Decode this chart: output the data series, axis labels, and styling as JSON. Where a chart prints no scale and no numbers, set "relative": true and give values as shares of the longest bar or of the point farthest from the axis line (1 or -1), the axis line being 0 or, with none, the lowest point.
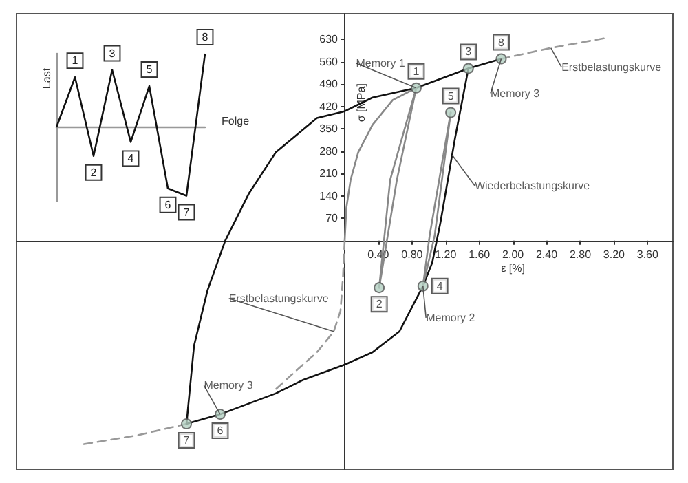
{
  "chart_data": [
    {
      "type": "line",
      "xlabel": "ε [%]",
      "ylabel": "σ [MPa]",
      "xlim": [
        -3.9,
        3.9
      ],
      "ylim": [
        -715,
        710
      ],
      "xticks": [
        {
          "value": 0.4,
          "label": "0.40"
        },
        {
          "value": 0.8,
          "label": "0.80"
        },
        {
          "value": 1.2,
          "label": "1.20"
        },
        {
          "value": 1.6,
          "label": "1.60"
        },
        {
          "value": 2.0,
          "label": "2.00"
        },
        {
          "value": 2.4,
          "label": "2.40"
        },
        {
          "value": 2.8,
          "label": "2.80"
        },
        {
          "value": 3.2,
          "label": "3.20"
        },
        {
          "value": 3.6,
          "label": "3.60"
        }
      ],
      "yticks": [
        70,
        140,
        210,
        280,
        350,
        420,
        490,
        560,
        630
      ],
      "grid": false,
      "marker": "none",
      "series": [
        {
          "color": "#888888",
          "x": [
            0,
            0.02,
            0.07,
            0.16,
            0.33,
            0.57,
            0.85
          ],
          "values": [
            0,
            103,
            190,
            276,
            362,
            440,
            478
          ]
        },
        {
          "color": "#999999",
          "line_style": "dashed",
          "x": [
            0,
            -0.02,
            -0.05,
            -0.13,
            -0.33,
            -0.57,
            -0.82,
            null,
            -1.88,
            -2.45,
            -3.13,
            null,
            1.86,
            2.45,
            3.1
          ],
          "values": [
            0,
            -112,
            -220,
            -284,
            -349,
            -405,
            -465,
            null,
            -573,
            -608,
            -638,
            null,
            569,
            603,
            634
          ]
        },
        {
          "color": "#111111",
          "x": [
            -1.88,
            -1.79,
            -1.63,
            -1.42,
            -1.14,
            -0.82,
            -0.33,
            0,
            0.33,
            0.85,
            1.47,
            1.86
          ],
          "values": [
            -573,
            -328,
            -155,
            0,
            147,
            276,
            384,
            405,
            448,
            478,
            539,
            569
          ]
        },
        {
          "color": "#111111",
          "x": [
            1.47,
            1.31,
            1.14,
            1.04,
            0.93,
            0.65,
            0.33,
            0,
            -0.49,
            -0.82,
            -1.48,
            -1.88
          ],
          "values": [
            539,
            319,
            60,
            -69,
            -142,
            -284,
            -349,
            -388,
            -435,
            -478,
            -543,
            -573
          ]
        },
        {
          "color": "#888888",
          "x": [
            0.85,
            0.54,
            0.41
          ],
          "values": [
            478,
            190,
            -147
          ]
        },
        {
          "color": "#888888",
          "x": [
            0.41,
            0.62,
            0.85
          ],
          "values": [
            -147,
            190,
            478
          ]
        },
        {
          "color": "#888888",
          "x": [
            1.26,
            1.01,
            0.93
          ],
          "values": [
            401,
            17,
            -142
          ]
        },
        {
          "color": "#888888",
          "x": [
            0.93,
            1.07,
            1.26
          ],
          "values": [
            -142,
            17,
            401
          ]
        },
        {
          "type": "scatter",
          "marker": "circle",
          "color": "#b3cfc2",
          "x": [
            0.85,
            0.41,
            1.47,
            0.93,
            1.26,
            -1.48,
            -1.88,
            1.86
          ],
          "values": [
            478,
            -147,
            539,
            -142,
            401,
            -543,
            -573,
            569
          ]
        }
      ],
      "annotations": [
        {
          "text": "Memory 1",
          "x": 0.85,
          "y": 478
        },
        {
          "text": "Memory 3",
          "x": 1.86,
          "y": 569
        },
        {
          "text": "Memory 2",
          "x": 0.93,
          "y": -142
        },
        {
          "text": "Memory 3",
          "x": -1.48,
          "y": -543
        },
        {
          "text": "Erstbelastungskurve",
          "x": 2.45,
          "y": 603
        },
        {
          "text": "Erstbelastungskurve",
          "x": -0.13,
          "y": -284
        },
        {
          "text": "Wiederbelastungskurve",
          "x": 1.28,
          "y": 267
        },
        {
          "text": "1",
          "x": 0.85,
          "y": 478
        },
        {
          "text": "2",
          "x": 0.41,
          "y": -147
        },
        {
          "text": "3",
          "x": 1.47,
          "y": 539
        },
        {
          "text": "4",
          "x": 0.93,
          "y": -142
        },
        {
          "text": "5",
          "x": 1.26,
          "y": 401
        },
        {
          "text": "6",
          "x": -1.48,
          "y": -543
        },
        {
          "text": "7",
          "x": -1.88,
          "y": -573
        },
        {
          "text": "8",
          "x": 1.86,
          "y": 569
        }
      ]
    },
    {
      "type": "line",
      "relative": true,
      "xlabel": "Folge",
      "ylabel": "Last",
      "color": "#111111",
      "categories": [
        null,
        null,
        null,
        null,
        null,
        null,
        null,
        null,
        null
      ],
      "values": [
        0,
        0.68,
        -0.39,
        0.78,
        -0.2,
        0.56,
        -0.83,
        -0.93,
        1
      ],
      "annotations": [
        "1",
        "2",
        "3",
        "4",
        "5",
        "6",
        "7",
        "8"
      ]
    }
  ]
}
